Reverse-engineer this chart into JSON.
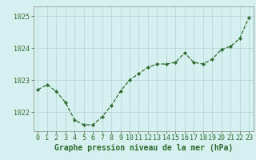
{
  "x": [
    0,
    1,
    2,
    3,
    4,
    5,
    6,
    7,
    8,
    9,
    10,
    11,
    12,
    13,
    14,
    15,
    16,
    17,
    18,
    19,
    20,
    21,
    22,
    23
  ],
  "y": [
    1022.7,
    1022.85,
    1022.65,
    1022.3,
    1021.75,
    1021.6,
    1021.6,
    1021.85,
    1022.2,
    1022.65,
    1023.0,
    1023.2,
    1023.4,
    1023.5,
    1023.5,
    1023.55,
    1023.85,
    1023.55,
    1023.5,
    1023.65,
    1023.95,
    1024.05,
    1024.3,
    1024.95
  ],
  "xlabel": "Graphe pression niveau de la mer (hPa)",
  "ylim": [
    1021.4,
    1025.3
  ],
  "yticks": [
    1022,
    1023,
    1024,
    1025
  ],
  "xticks": [
    0,
    1,
    2,
    3,
    4,
    5,
    6,
    7,
    8,
    9,
    10,
    11,
    12,
    13,
    14,
    15,
    16,
    17,
    18,
    19,
    20,
    21,
    22,
    23
  ],
  "line_color": "#2d6a2d",
  "marker_color": "#2d6a2d",
  "bg_color": "#d6f0f0",
  "grid_color": "#b8dada",
  "axis_color": "#5a5a5a",
  "label_color": "#2d6a2d",
  "xlabel_fontsize": 7.0,
  "tick_fontsize": 6.0
}
